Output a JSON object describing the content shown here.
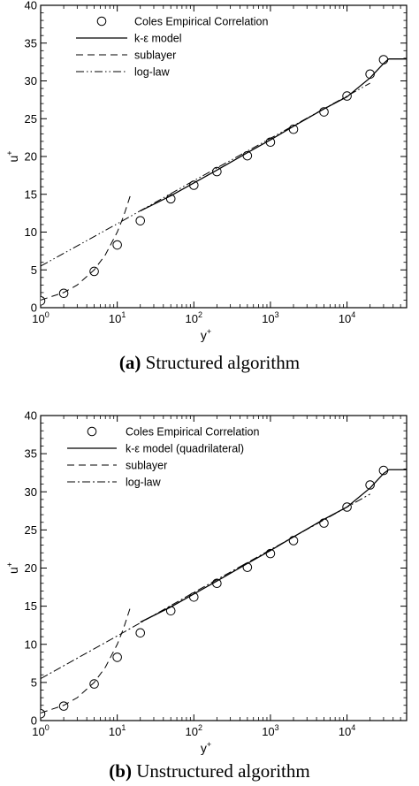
{
  "chart_data": [
    {
      "type": "line",
      "caption_tag": "(a)",
      "caption_text": "Structured algorithm",
      "xlabel": "y",
      "xlabel_sup": "+",
      "ylabel": "u",
      "ylabel_sup": "+",
      "xscale": "log",
      "xlim": [
        1,
        60000
      ],
      "ylim": [
        0,
        40
      ],
      "yticks": [
        0,
        5,
        10,
        15,
        20,
        25,
        30,
        35,
        40
      ],
      "xtick_exponents": [
        "0",
        "1",
        "2",
        "3",
        "4"
      ],
      "xtick_base": "10",
      "legend_placement": "top-left",
      "legend": [
        "Coles Empirical Correlation",
        "k-ε model",
        "sublayer",
        "log-law"
      ],
      "series": [
        {
          "name": "Coles Empirical Correlation",
          "style": "circle-markers",
          "x": [
            1,
            2,
            5,
            10,
            20,
            50,
            100,
            200,
            500,
            1000,
            2000,
            5000,
            10000,
            20000,
            30000
          ],
          "y": [
            0.9,
            1.9,
            4.8,
            8.3,
            11.5,
            14.4,
            16.2,
            18.0,
            20.1,
            21.9,
            23.6,
            25.9,
            28.0,
            30.9,
            32.8
          ]
        },
        {
          "name": "k-ε model",
          "style": "solid",
          "x": [
            20,
            50,
            100,
            200,
            500,
            1000,
            2000,
            5000,
            10000,
            20000,
            30000,
            35000,
            60000
          ],
          "y": [
            12.8,
            14.8,
            16.5,
            18.2,
            20.5,
            22.2,
            24.0,
            26.3,
            27.9,
            30.4,
            32.3,
            32.9,
            32.9
          ]
        },
        {
          "name": "sublayer",
          "style": "dashed",
          "x": [
            1,
            2,
            3,
            5,
            7,
            10,
            12,
            15
          ],
          "y": [
            1,
            2,
            3,
            5,
            7,
            10,
            12,
            15
          ]
        },
        {
          "name": "log-law",
          "style": "dash-dot-dot",
          "x": [
            1,
            10,
            100,
            1000,
            10000,
            20000
          ],
          "y": [
            5.5,
            11.1,
            16.8,
            22.4,
            28.0,
            29.7
          ]
        }
      ]
    },
    {
      "type": "line",
      "caption_tag": "(b)",
      "caption_text": "Unstructured algorithm",
      "xlabel": "y",
      "xlabel_sup": "+",
      "ylabel": "u",
      "ylabel_sup": "+",
      "xscale": "log",
      "xlim": [
        1,
        60000
      ],
      "ylim": [
        0,
        40
      ],
      "yticks": [
        0,
        5,
        10,
        15,
        20,
        25,
        30,
        35,
        40
      ],
      "xtick_exponents": [
        "0",
        "1",
        "2",
        "3",
        "4"
      ],
      "xtick_base": "10",
      "legend_placement": "top-left",
      "legend": [
        "Coles Empirical Correlation",
        "k-ε model (quadrilateral)",
        "sublayer",
        "log-law"
      ],
      "series": [
        {
          "name": "Coles Empirical Correlation",
          "style": "circle-markers",
          "x": [
            1,
            2,
            5,
            10,
            20,
            50,
            100,
            200,
            500,
            1000,
            2000,
            5000,
            10000,
            20000,
            30000
          ],
          "y": [
            0.9,
            1.9,
            4.8,
            8.3,
            11.5,
            14.4,
            16.2,
            18.0,
            20.1,
            21.9,
            23.6,
            25.9,
            28.0,
            30.9,
            32.8
          ]
        },
        {
          "name": "k-ε model (quadrilateral)",
          "style": "solid",
          "x": [
            20,
            50,
            100,
            200,
            500,
            1000,
            2000,
            5000,
            10000,
            20000,
            30000,
            35000,
            60000
          ],
          "y": [
            12.9,
            14.9,
            16.6,
            18.3,
            20.6,
            22.3,
            24.1,
            26.4,
            28.0,
            30.5,
            32.4,
            32.9,
            32.9
          ]
        },
        {
          "name": "sublayer",
          "style": "dashed",
          "x": [
            1,
            2,
            3,
            5,
            7,
            10,
            12,
            15
          ],
          "y": [
            1,
            2,
            3,
            5,
            7,
            10,
            12,
            15
          ]
        },
        {
          "name": "log-law",
          "style": "dash-dot",
          "x": [
            1,
            10,
            100,
            1000,
            10000,
            20000
          ],
          "y": [
            5.5,
            11.1,
            16.8,
            22.4,
            28.0,
            29.7
          ]
        }
      ]
    }
  ]
}
